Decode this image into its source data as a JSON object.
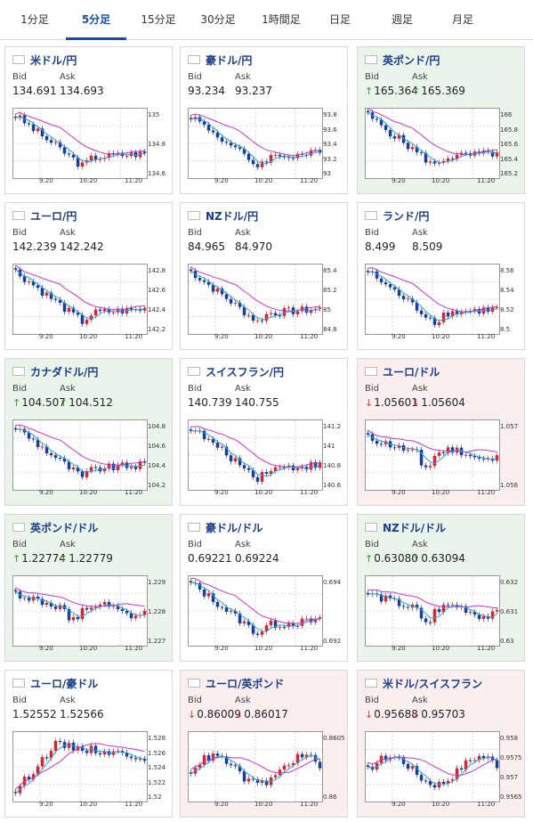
{
  "tabs": [
    "1分足",
    "5分足",
    "15分足",
    "30分足",
    "1時間足",
    "日足",
    "週足",
    "月足"
  ],
  "active_tab": 1,
  "labels": {
    "bid": "Bid",
    "ask": "Ask"
  },
  "x_ticks": [
    "9:20",
    "10:20",
    "11:20"
  ],
  "colors": {
    "up_candle": "#d6262d",
    "down_candle": "#1c3d94",
    "ma_short": "#2aa3d9",
    "ma_long": "#cc33cc",
    "up_arrow": "#2d9b2d",
    "down_arrow": "#d43b3b",
    "card_up_bg": "#eaf4ea",
    "card_down_bg": "#fbeeee"
  },
  "cards": [
    {
      "pair": "米ドル/円",
      "flag": "us-jp-flag-icon",
      "state": "neutral",
      "bid": "134.691",
      "ask": "134.693",
      "arrow": "",
      "yticks": [
        "135",
        "134.8",
        "134.6"
      ],
      "chart_data": {
        "type": "candlestick",
        "ylim": [
          134.5,
          135.15
        ],
        "shape": "drop"
      }
    },
    {
      "pair": "豪ドル/円",
      "flag": "au-jp-flag-icon",
      "state": "neutral",
      "bid": "93.234",
      "ask": "93.237",
      "arrow": "",
      "yticks": [
        "93.8",
        "93.6",
        "93.4",
        "93.2",
        "93"
      ],
      "chart_data": {
        "type": "candlestick",
        "ylim": [
          92.95,
          93.9
        ],
        "shape": "drop"
      }
    },
    {
      "pair": "英ポンド/円",
      "flag": "gb-jp-flag-icon",
      "state": "up",
      "bid": "165.364",
      "ask": "165.369",
      "arrow": "↑",
      "yticks": [
        "166",
        "165.8",
        "165.6",
        "165.4",
        "165.2"
      ],
      "chart_data": {
        "type": "candlestick",
        "ylim": [
          165.1,
          166.05
        ],
        "shape": "drop"
      }
    },
    {
      "pair": "ユーロ/円",
      "flag": "eu-jp-flag-icon",
      "state": "neutral",
      "bid": "142.239",
      "ask": "142.242",
      "arrow": "",
      "yticks": [
        "142.8",
        "142.6",
        "142.4",
        "142.2"
      ],
      "chart_data": {
        "type": "candlestick",
        "ylim": [
          142.05,
          142.85
        ],
        "shape": "drop"
      }
    },
    {
      "pair": "NZドル/円",
      "flag": "nz-jp-flag-icon",
      "state": "neutral",
      "bid": "84.965",
      "ask": "84.970",
      "arrow": "",
      "yticks": [
        "85.4",
        "85.2",
        "85",
        "84.8"
      ],
      "chart_data": {
        "type": "candlestick",
        "ylim": [
          84.75,
          85.45
        ],
        "shape": "drop"
      }
    },
    {
      "pair": "ランド/円",
      "flag": "za-jp-flag-icon",
      "state": "neutral",
      "bid": "8.499",
      "ask": "8.509",
      "arrow": "",
      "yticks": [
        "8.56",
        "8.54",
        "8.52",
        "8.5"
      ],
      "chart_data": {
        "type": "candlestick",
        "ylim": [
          8.49,
          8.565
        ],
        "shape": "drop"
      }
    },
    {
      "pair": "カナダドル/円",
      "flag": "ca-jp-flag-icon",
      "state": "up",
      "bid": "104.507",
      "ask": "104.512",
      "arrow": "↑",
      "yticks": [
        "104.8",
        "104.6",
        "104.4",
        "104.2"
      ],
      "chart_data": {
        "type": "candlestick",
        "ylim": [
          104.15,
          104.85
        ],
        "shape": "drop"
      }
    },
    {
      "pair": "スイスフラン/円",
      "flag": "ch-jp-flag-icon",
      "state": "neutral",
      "bid": "140.739",
      "ask": "140.755",
      "arrow": "",
      "yticks": [
        "141.2",
        "141",
        "140.8",
        "140.6"
      ],
      "chart_data": {
        "type": "candlestick",
        "ylim": [
          140.5,
          141.25
        ],
        "shape": "drop"
      }
    },
    {
      "pair": "ユーロ/ドル",
      "flag": "eu-us-flag-icon",
      "state": "down",
      "bid": "1.05601",
      "ask": "1.05604",
      "arrow": "↓",
      "yticks": [
        "1.057",
        "1.056"
      ],
      "chart_data": {
        "type": "candlestick",
        "ylim": [
          1.0552,
          1.0575
        ],
        "shape": "flat"
      }
    },
    {
      "pair": "英ポンド/ドル",
      "flag": "gb-us-flag-icon",
      "state": "up",
      "bid": "1.22774",
      "ask": "1.22779",
      "arrow": "↑",
      "yticks": [
        "1.229",
        "1.228",
        "1.227"
      ],
      "chart_data": {
        "type": "candlestick",
        "ylim": [
          1.2262,
          1.2295
        ],
        "shape": "flat"
      }
    },
    {
      "pair": "豪ドル/ドル",
      "flag": "au-us-flag-icon",
      "state": "neutral",
      "bid": "0.69221",
      "ask": "0.69224",
      "arrow": "",
      "yticks": [
        "0.694",
        "0.692"
      ],
      "chart_data": {
        "type": "candlestick",
        "ylim": [
          0.6912,
          0.6952
        ],
        "shape": "drop"
      }
    },
    {
      "pair": "NZドル/ドル",
      "flag": "nz-us-flag-icon",
      "state": "up",
      "bid": "0.63080",
      "ask": "0.63094",
      "arrow": "↑",
      "yticks": [
        "0.632",
        "0.631",
        "0.63"
      ],
      "chart_data": {
        "type": "candlestick",
        "ylim": [
          0.6296,
          0.6324
        ],
        "shape": "flat"
      }
    },
    {
      "pair": "ユーロ/豪ドル",
      "flag": "eu-au-flag-icon",
      "state": "neutral",
      "bid": "1.52552",
      "ask": "1.52566",
      "arrow": "",
      "yticks": [
        "1.528",
        "1.526",
        "1.524",
        "1.522",
        "1.52"
      ],
      "chart_data": {
        "type": "candlestick",
        "ylim": [
          1.5195,
          1.5285
        ],
        "shape": "rise"
      }
    },
    {
      "pair": "ユーロ/英ポンド",
      "flag": "eu-gb-flag-icon",
      "state": "down",
      "bid": "0.86009",
      "ask": "0.86017",
      "arrow": "↓",
      "yticks": [
        "0.8605",
        "0.86"
      ],
      "chart_data": {
        "type": "candlestick",
        "ylim": [
          0.8597,
          0.8612
        ],
        "shape": "spiky"
      }
    },
    {
      "pair": "米ドル/スイスフラン",
      "flag": "us-ch-flag-icon",
      "state": "down",
      "bid": "0.95688",
      "ask": "0.95703",
      "arrow": "↓",
      "yticks": [
        "0.958",
        "0.9575",
        "0.957",
        "0.9565"
      ],
      "chart_data": {
        "type": "candlestick",
        "ylim": [
          0.9563,
          0.9582
        ],
        "shape": "spiky"
      }
    }
  ]
}
